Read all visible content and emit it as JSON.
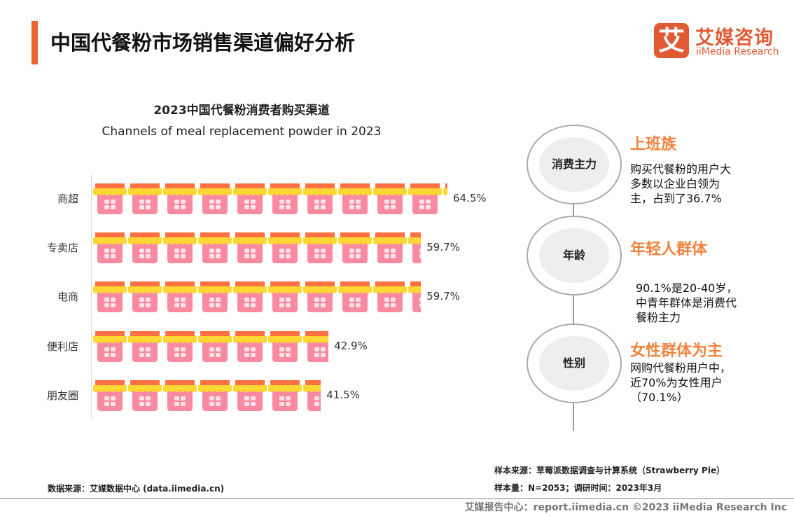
{
  "header": {
    "title": "中国代餐粉市场销售渠道偏好分析",
    "logo_mark": "艾",
    "logo_cn": "艾媒咨询",
    "logo_en": "iiMedia Research"
  },
  "chart_data": {
    "type": "bar",
    "orientation": "horizontal",
    "title": "2023中国代餐粉消费者购买渠道",
    "subtitle": "Channels of meal replacement powder in 2023",
    "categories": [
      "商超",
      "专卖店",
      "电商",
      "便利店",
      "朋友圈"
    ],
    "values": [
      64.5,
      59.7,
      59.7,
      42.9,
      41.5
    ],
    "labels": [
      "64.5%",
      "59.7%",
      "59.7%",
      "42.9%",
      "41.5%"
    ],
    "mark": "shop-icon pictograph",
    "colors": {
      "roof": "#ff7043",
      "awning": "#fdd835",
      "body": "#f98aa0"
    }
  },
  "panel": [
    {
      "circle": "消费主力",
      "heading": "上班族",
      "desc": [
        "购买代餐粉的用户大",
        "多数以企业白领为",
        "主，占到了36.7%"
      ]
    },
    {
      "circle": "年龄",
      "heading": "年轻人群体",
      "desc": [
        "90.1%是20-40岁，",
        "中青年群体是消费代",
        "餐粉主力"
      ]
    },
    {
      "circle": "性别",
      "heading": "女性群体为主",
      "desc": [
        "网购代餐粉用户中，",
        "近70%为女性用户",
        "（70.1%）"
      ]
    }
  ],
  "notes": {
    "source": "数据来源：艾媒数据中心  (data.iimedia.cn)",
    "sample_source": "样本来源：草莓派数据调查与计算系统（Strawberry Pie）",
    "sample_size": "样本量：N=2053；调研时间：2023年3月"
  },
  "footer": "艾媒报告中心：report.iimedia.cn  ©2023  iiMedia Research  Inc"
}
